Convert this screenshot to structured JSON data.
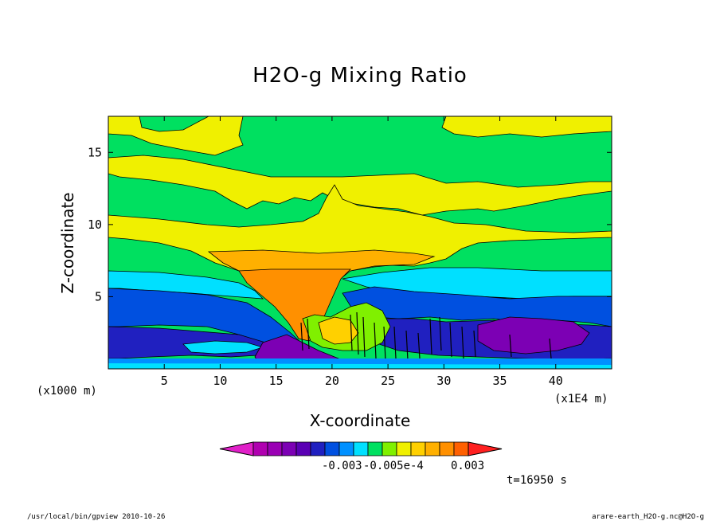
{
  "chart_data": {
    "type": "heatmap",
    "title": "H2O-g Mixing Ratio",
    "xlabel": "X-coordinate",
    "ylabel": "Z-coordinate",
    "x_unit": "(x1E4 m)",
    "y_unit": "(x1000 m)",
    "xlim": [
      0,
      45
    ],
    "ylim": [
      0,
      17.5
    ],
    "x_ticks": [
      5,
      10,
      15,
      20,
      25,
      30,
      35,
      40
    ],
    "y_ticks": [
      5,
      10,
      15
    ],
    "colorbar": {
      "colors": [
        "#e020c8",
        "#b000b0",
        "#9a00b4",
        "#7c00b4",
        "#5a00b4",
        "#2020c0",
        "#0050e0",
        "#0090ff",
        "#00e0ff",
        "#00e060",
        "#80f000",
        "#f0f000",
        "#ffd000",
        "#ffb000",
        "#ff9000",
        "#ff6000",
        "#ff2020"
      ],
      "tick_labels": [
        "-0.003",
        "-0.005e-4",
        "0.003"
      ]
    },
    "time_label": "t=16950 s"
  },
  "footer": {
    "left": "/usr/local/bin/gpview  2010-10-26",
    "right": "arare-earth_H2O-g.nc@H2O-g"
  }
}
